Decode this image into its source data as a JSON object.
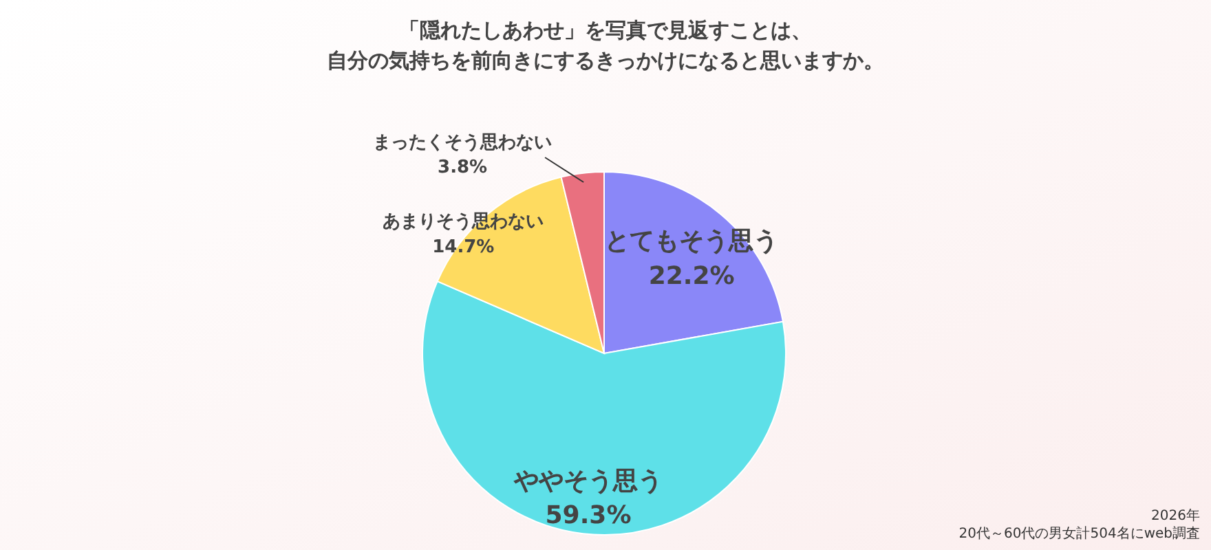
{
  "chart_data": {
    "type": "pie",
    "title": "「隠れたしあわせ」を写真で見返すことは、",
    "subtitle": "自分の気持ちを前向きにするきっかけになると思いますか。",
    "categories": [
      "とてもそう思う",
      "ややそう思う",
      "あまりそう思わない",
      "まったくそう思わない"
    ],
    "values": [
      22.2,
      59.3,
      14.7,
      3.8
    ],
    "colors": [
      "#8a87f8",
      "#5ee0e8",
      "#fedb60",
      "#e9707f"
    ],
    "value_labels": [
      "22.2%",
      "59.3%",
      "14.7%",
      "3.8%"
    ],
    "annotations": [
      "2026年",
      "20代～60代の男女計504名にweb調査"
    ]
  }
}
